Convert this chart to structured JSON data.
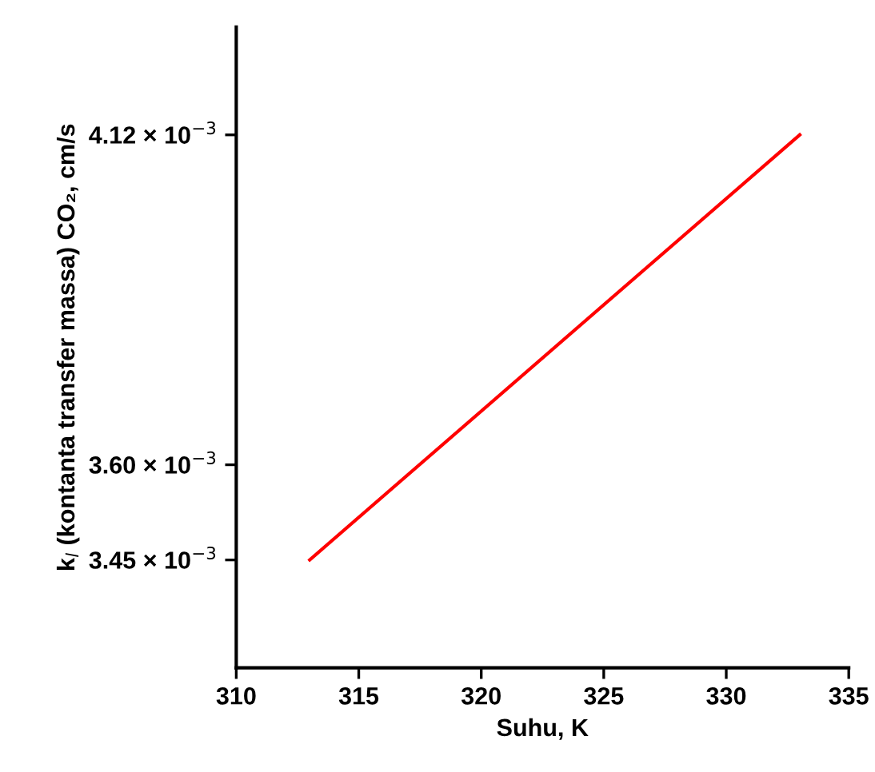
{
  "chart_data": {
    "type": "line",
    "xlabel": "Suhu, K",
    "ylabel": "k$_{l}$ (kontanta transfer massa) CO₂, cm/s",
    "x": [
      313,
      333
    ],
    "series": [
      {
        "color": "#ff0000",
        "values": [
          0.00345,
          0.00412
        ]
      }
    ],
    "xlim": [
      310,
      335
    ],
    "xticks": [
      310,
      315,
      320,
      325,
      330,
      335
    ],
    "ylim": [
      0.00328,
      0.00429
    ],
    "yticks": [
      {
        "value": 0.00345,
        "label": "3.45 × 10$^{−3}$"
      },
      {
        "value": 0.0036,
        "label": "3.60 × 10$^{−3}$"
      },
      {
        "value": 0.00412,
        "label": "4.12 × 10$^{−3}$"
      }
    ],
    "grid": false,
    "legend": false,
    "marker": "none",
    "line_style": "solid"
  }
}
